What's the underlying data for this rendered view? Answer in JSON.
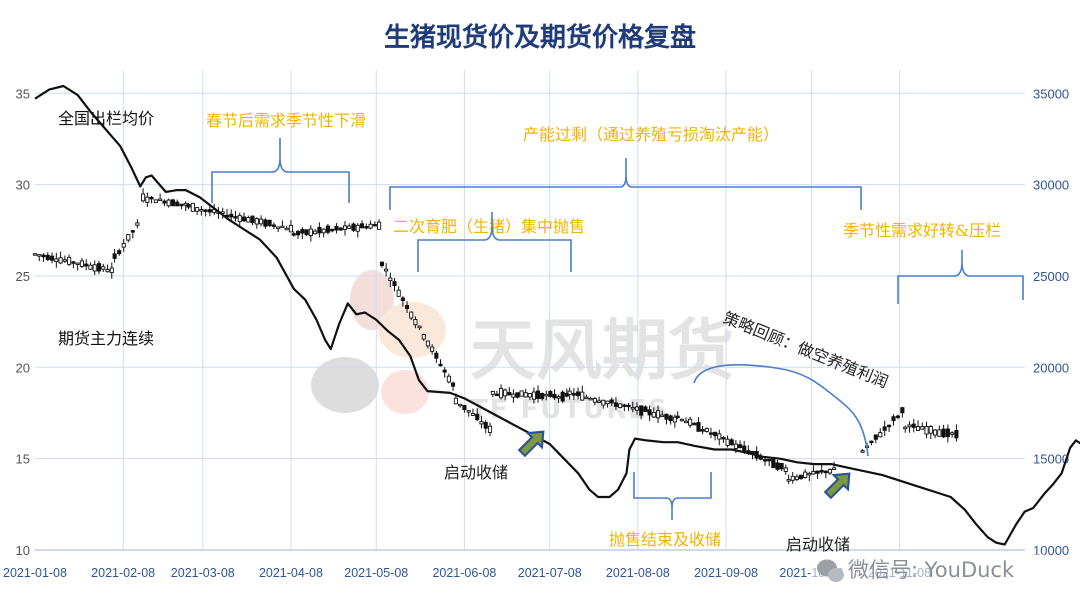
{
  "chart_data": {
    "type": "line",
    "title": "生猪现货价及期货价格复盘",
    "x_tick_labels": [
      "2021-01-08",
      "2021-02-08",
      "2021-03-08",
      "2021-04-08",
      "2021-05-08",
      "2021-06-08",
      "2021-07-08",
      "2021-08-08",
      "2021-09-08",
      "2021-10-08",
      "2021-11-08"
    ],
    "y_left": {
      "ticks": [
        10,
        15,
        20,
        25,
        30,
        35
      ],
      "range": [
        10,
        36
      ]
    },
    "y_right": {
      "ticks": [
        10000,
        15000,
        20000,
        25000,
        30000,
        35000
      ],
      "range": [
        10000,
        36000
      ]
    },
    "grid": true,
    "series": [
      {
        "name": "全国出栏均价",
        "axis": "left",
        "color": "#111111",
        "points": [
          [
            "2021-01-08",
            34.7
          ],
          [
            "2021-01-13",
            35.2
          ],
          [
            "2021-01-18",
            35.4
          ],
          [
            "2021-01-23",
            34.9
          ],
          [
            "2021-01-28",
            33.9
          ],
          [
            "2021-02-02",
            33.0
          ],
          [
            "2021-02-07",
            32.1
          ],
          [
            "2021-02-11",
            30.9
          ],
          [
            "2021-02-14",
            29.9
          ],
          [
            "2021-02-16",
            30.4
          ],
          [
            "2021-02-18",
            30.5
          ],
          [
            "2021-02-23",
            29.6
          ],
          [
            "2021-02-27",
            29.7
          ],
          [
            "2021-03-02",
            29.7
          ],
          [
            "2021-03-07",
            29.3
          ],
          [
            "2021-03-12",
            28.7
          ],
          [
            "2021-03-17",
            28.1
          ],
          [
            "2021-03-22",
            27.6
          ],
          [
            "2021-03-28",
            27.0
          ],
          [
            "2021-04-03",
            26.0
          ],
          [
            "2021-04-09",
            24.3
          ],
          [
            "2021-04-13",
            23.7
          ],
          [
            "2021-04-17",
            22.6
          ],
          [
            "2021-04-20",
            21.5
          ],
          [
            "2021-04-22",
            21.0
          ],
          [
            "2021-04-25",
            22.4
          ],
          [
            "2021-04-28",
            23.5
          ],
          [
            "2021-05-01",
            22.9
          ],
          [
            "2021-05-04",
            23.0
          ],
          [
            "2021-05-08",
            22.6
          ],
          [
            "2021-05-12",
            22.0
          ],
          [
            "2021-05-16",
            21.5
          ],
          [
            "2021-05-20",
            20.6
          ],
          [
            "2021-05-23",
            19.3
          ],
          [
            "2021-05-26",
            18.7
          ],
          [
            "2021-06-03",
            18.6
          ],
          [
            "2021-06-08",
            18.3
          ],
          [
            "2021-06-14",
            17.8
          ],
          [
            "2021-06-20",
            17.3
          ],
          [
            "2021-06-26",
            16.8
          ],
          [
            "2021-07-02",
            16.3
          ],
          [
            "2021-07-08",
            15.8
          ],
          [
            "2021-07-13",
            15.0
          ],
          [
            "2021-07-18",
            14.2
          ],
          [
            "2021-07-22",
            13.3
          ],
          [
            "2021-07-25",
            12.9
          ],
          [
            "2021-07-29",
            12.9
          ],
          [
            "2021-08-01",
            13.3
          ],
          [
            "2021-08-04",
            14.2
          ],
          [
            "2021-08-05",
            15.5
          ],
          [
            "2021-08-07",
            16.1
          ],
          [
            "2021-08-11",
            16.0
          ],
          [
            "2021-08-17",
            15.9
          ],
          [
            "2021-08-22",
            15.9
          ],
          [
            "2021-08-28",
            15.7
          ],
          [
            "2021-09-04",
            15.5
          ],
          [
            "2021-09-10",
            15.5
          ],
          [
            "2021-09-16",
            15.3
          ],
          [
            "2021-09-21",
            15.1
          ],
          [
            "2021-09-27",
            15.0
          ],
          [
            "2021-10-03",
            14.8
          ],
          [
            "2021-10-09",
            14.7
          ],
          [
            "2021-10-15",
            14.7
          ],
          [
            "2021-10-21",
            14.5
          ],
          [
            "2021-10-27",
            14.3
          ],
          [
            "2021-11-02",
            14.1
          ],
          [
            "2021-11-08",
            13.8
          ],
          [
            "2021-11-14",
            13.5
          ],
          [
            "2021-11-20",
            13.2
          ],
          [
            "2021-11-26",
            12.9
          ],
          [
            "2021-12-01",
            12.2
          ],
          [
            "2021-12-05",
            11.4
          ],
          [
            "2021-12-09",
            10.7
          ],
          [
            "2021-12-12",
            10.4
          ],
          [
            "2021-12-15",
            10.3
          ],
          [
            "2021-12-19",
            11.4
          ],
          [
            "2021-12-22",
            12.1
          ],
          [
            "2021-12-25",
            12.3
          ],
          [
            "2021-12-29",
            13.1
          ],
          [
            "2022-01-01",
            13.6
          ],
          [
            "2022-01-04",
            14.2
          ],
          [
            "2022-01-07",
            15.6
          ],
          [
            "2022-01-09",
            16.0
          ],
          [
            "2022-01-12",
            15.7
          ],
          [
            "2022-01-15",
            15.7
          ],
          [
            "2022-01-18",
            16.2
          ],
          [
            "2022-01-21",
            16.1
          ],
          [
            "2022-01-24",
            16.6
          ],
          [
            "2022-01-27",
            16.8
          ],
          [
            "2022-01-29",
            17.4
          ]
        ]
      },
      {
        "name": "期货主力连续",
        "axis": "right",
        "type": "candlestick",
        "color": "#111111",
        "segments": [
          {
            "start": "2021-01-08",
            "end": "2021-02-04",
            "start_value": 26200,
            "end_value": 25300
          },
          {
            "start": "2021-02-05",
            "end": "2021-02-13",
            "start_value": 26000,
            "end_value": 27800
          },
          {
            "start": "2021-02-15",
            "end": "2021-03-02",
            "start_value": 29300,
            "end_value": 28900
          },
          {
            "start": "2021-03-03",
            "end": "2021-04-08",
            "start_value": 28800,
            "end_value": 27600
          },
          {
            "start": "2021-04-09",
            "end": "2021-05-09",
            "start_value": 27300,
            "end_value": 27800
          },
          {
            "start": "2021-05-10",
            "end": "2021-06-04",
            "start_value": 25700,
            "end_value": 19000
          },
          {
            "start": "2021-06-05",
            "end": "2021-06-17",
            "start_value": 18200,
            "end_value": 16600
          },
          {
            "start": "2021-06-18",
            "end": "2021-07-14",
            "start_value": 18600,
            "end_value": 18400
          },
          {
            "start": "2021-07-15",
            "end": "2021-08-21",
            "start_value": 18600,
            "end_value": 17200
          },
          {
            "start": "2021-08-22",
            "end": "2021-09-29",
            "start_value": 17300,
            "end_value": 14400
          },
          {
            "start": "2021-09-30",
            "end": "2021-10-16",
            "start_value": 13900,
            "end_value": 14400
          },
          {
            "start": "2021-10-26",
            "end": "2021-11-09",
            "start_value": 15400,
            "end_value": 17600
          },
          {
            "start": "2021-11-10",
            "end": "2021-11-28",
            "start_value": 16800,
            "end_value": 16300
          }
        ]
      }
    ]
  },
  "labels": {
    "spot_series": "全国出栏均价",
    "futures_series": "期货主力连续",
    "spring_decline": "春节后需求季节性下滑",
    "overcapacity": "产能过剩（通过养殖亏损淘汰产能）",
    "second_fattening": "二次育肥（生猪）集中抛售",
    "seasonal_recovery": "季节性需求好转&压栏",
    "strategy_review": "策略回顾：做空养殖利润",
    "storage_start_1": "启动收储",
    "storage_start_2": "启动收储",
    "selling_end": "抛售结束及收储"
  },
  "watermark": {
    "text_cn": "天风期货",
    "text_en": "TF FUTURES"
  },
  "footer": {
    "wechat": "微信号: YouDuck"
  },
  "colors": {
    "title": "#1f3b7a",
    "axis_right": "#2f5597",
    "gold": "#f0b400",
    "bracket": "#4a7fc9",
    "arrow_fill": "#7d9a3f",
    "arrow_stroke": "#2f5597"
  }
}
